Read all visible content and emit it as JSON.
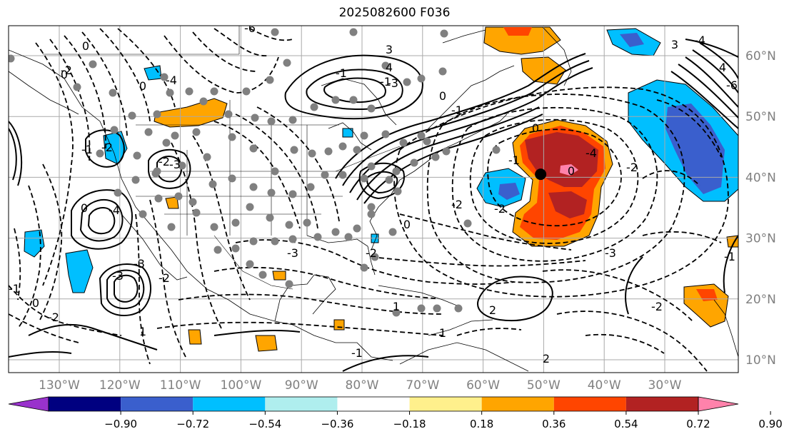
{
  "title": "2025082600 F036",
  "lat_labels": [
    "60°N",
    "50°N",
    "40°N",
    "30°N",
    "20°N",
    "10°N"
  ],
  "lon_labels": [
    "130°W",
    "120°W",
    "110°W",
    "100°W",
    "90°W",
    "80°W",
    "70°W",
    "60°W",
    "50°W",
    "40°W",
    "30°W"
  ],
  "colorbar": {
    "colors": [
      "#9932cc",
      "#000080",
      "#3a5fcd",
      "#00bfff",
      "#afeeee",
      "#ffffff",
      "#fff08c",
      "#ffa500",
      "#ff4500",
      "#b22222",
      "#ff82ab"
    ],
    "ticks": [
      "−0.90",
      "−0.72",
      "−0.54",
      "−0.36",
      "−0.18",
      "0.18",
      "0.36",
      "0.54",
      "0.72",
      "0.90"
    ]
  },
  "contour_labels": [
    "0",
    "0",
    "-4",
    "-2",
    "-3",
    "-1",
    "-1",
    "0",
    "-1",
    "-2",
    "-2",
    "-3",
    "0",
    "-4",
    "-3",
    "-2",
    "-1",
    "0",
    "1",
    "-2",
    "2",
    "1",
    "-1",
    "0",
    "0",
    "-4",
    "-2",
    "-3",
    "0",
    "-1",
    "-2",
    "-2",
    "0",
    "-1",
    "3",
    "4",
    "-4",
    "-6",
    "-2",
    "-3",
    "-6",
    "3",
    "4",
    "-2",
    "-1",
    "1",
    "2",
    "-3"
  ],
  "storm_center": {
    "lon": -50.5,
    "lat": 40.5
  }
}
